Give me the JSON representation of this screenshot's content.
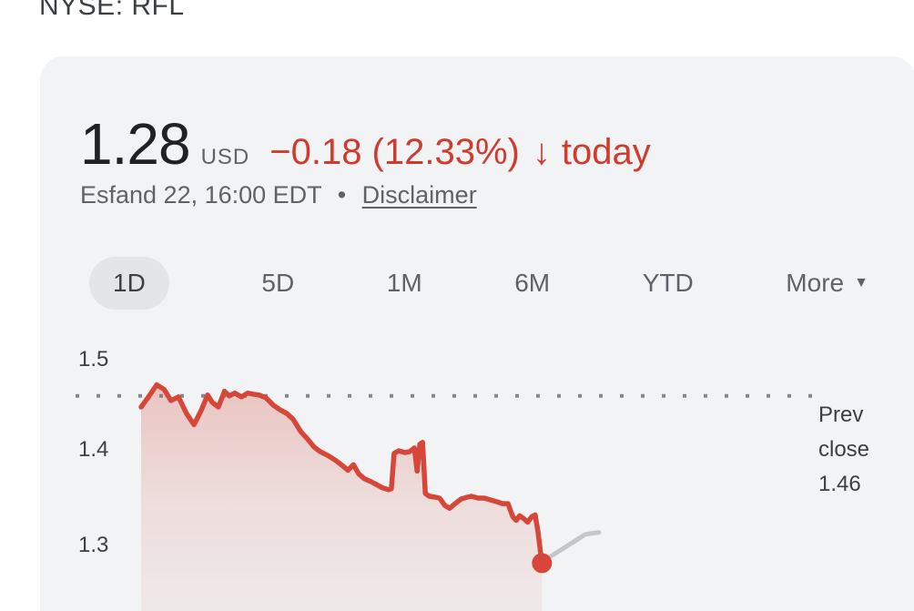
{
  "header": {
    "listing": "NYSE: RFL"
  },
  "quote": {
    "price": "1.28",
    "currency": "USD",
    "change": "−0.18 (12.33%)",
    "direction_icon": "↓",
    "direction_word": "today",
    "timestamp": "Esfand 22, 16:00 EDT",
    "separator": "•",
    "disclaimer": "Disclaimer"
  },
  "range_tabs": [
    {
      "label": "1D",
      "active": true
    },
    {
      "label": "5D",
      "active": false
    },
    {
      "label": "1M",
      "active": false
    },
    {
      "label": "6M",
      "active": false
    },
    {
      "label": "YTD",
      "active": false
    },
    {
      "label": "More",
      "active": false,
      "dropdown_icon": "▼"
    }
  ],
  "chart_data": {
    "type": "line",
    "period": "1D",
    "currency": "USD",
    "yticks": [
      "1.5",
      "1.4",
      "1.3"
    ],
    "ylim": [
      1.27,
      1.53
    ],
    "grid": "prev-close dotted line only",
    "legend": "none",
    "prev_close": 1.46,
    "prev_close_label": {
      "line1": "Prev",
      "line2": "close",
      "line3": "1.46"
    },
    "last_price": 1.28,
    "end_dot": {
      "x": 0.591,
      "value": 1.28,
      "color": "#d6473a"
    },
    "series": [
      {
        "name": "regular-hours-price",
        "color": "#d6473a",
        "points": [
          [
            0.0,
            1.448
          ],
          [
            0.011,
            1.459
          ],
          [
            0.023,
            1.472
          ],
          [
            0.034,
            1.467
          ],
          [
            0.044,
            1.455
          ],
          [
            0.055,
            1.459
          ],
          [
            0.067,
            1.441
          ],
          [
            0.078,
            1.429
          ],
          [
            0.089,
            1.445
          ],
          [
            0.098,
            1.461
          ],
          [
            0.105,
            1.453
          ],
          [
            0.114,
            1.448
          ],
          [
            0.123,
            1.465
          ],
          [
            0.13,
            1.46
          ],
          [
            0.138,
            1.463
          ],
          [
            0.148,
            1.459
          ],
          [
            0.157,
            1.463
          ],
          [
            0.165,
            1.462
          ],
          [
            0.174,
            1.461
          ],
          [
            0.184,
            1.458
          ],
          [
            0.195,
            1.45
          ],
          [
            0.205,
            1.445
          ],
          [
            0.215,
            1.441
          ],
          [
            0.224,
            1.435
          ],
          [
            0.235,
            1.422
          ],
          [
            0.246,
            1.413
          ],
          [
            0.255,
            1.405
          ],
          [
            0.264,
            1.4
          ],
          [
            0.275,
            1.396
          ],
          [
            0.286,
            1.391
          ],
          [
            0.295,
            1.386
          ],
          [
            0.305,
            1.38
          ],
          [
            0.313,
            1.386
          ],
          [
            0.321,
            1.376
          ],
          [
            0.329,
            1.371
          ],
          [
            0.338,
            1.368
          ],
          [
            0.346,
            1.365
          ],
          [
            0.356,
            1.361
          ],
          [
            0.365,
            1.359
          ],
          [
            0.369,
            1.36
          ],
          [
            0.373,
            1.398
          ],
          [
            0.38,
            1.401
          ],
          [
            0.389,
            1.399
          ],
          [
            0.396,
            1.4
          ],
          [
            0.403,
            1.404
          ],
          [
            0.407,
            1.379
          ],
          [
            0.411,
            1.408
          ],
          [
            0.415,
            1.41
          ],
          [
            0.419,
            1.355
          ],
          [
            0.425,
            1.352
          ],
          [
            0.434,
            1.351
          ],
          [
            0.44,
            1.35
          ],
          [
            0.448,
            1.342
          ],
          [
            0.455,
            1.339
          ],
          [
            0.463,
            1.344
          ],
          [
            0.472,
            1.349
          ],
          [
            0.481,
            1.351
          ],
          [
            0.487,
            1.352
          ],
          [
            0.497,
            1.35
          ],
          [
            0.506,
            1.35
          ],
          [
            0.515,
            1.348
          ],
          [
            0.525,
            1.346
          ],
          [
            0.533,
            1.344
          ],
          [
            0.541,
            1.344
          ],
          [
            0.548,
            1.33
          ],
          [
            0.553,
            1.326
          ],
          [
            0.558,
            1.331
          ],
          [
            0.564,
            1.328
          ],
          [
            0.57,
            1.324
          ],
          [
            0.576,
            1.33
          ],
          [
            0.581,
            1.332
          ],
          [
            0.585,
            1.315
          ],
          [
            0.588,
            1.297
          ],
          [
            0.591,
            1.28
          ]
        ]
      },
      {
        "name": "after-hours-price",
        "color": "#c4c7c9",
        "points": [
          [
            0.597,
            1.284
          ],
          [
            0.655,
            1.311
          ],
          [
            0.675,
            1.313
          ]
        ]
      }
    ]
  },
  "colors": {
    "page_bg": "#ffffff",
    "card_bg": "#f1f3f4",
    "primary_text": "#202124",
    "secondary_text": "#5f6368",
    "label_text": "#3c4043",
    "down_red": "#d03b2e",
    "line_red": "#d6473a",
    "after_hours_gray": "#c4c7c9",
    "prev_close_dots": "#85898d",
    "active_tab_bg": "#e3e6e8"
  }
}
